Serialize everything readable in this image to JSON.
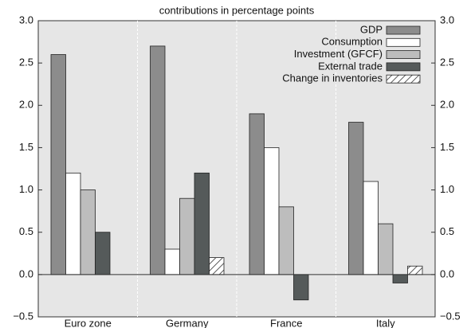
{
  "chart_data": {
    "type": "bar",
    "title": "contributions in percentage points",
    "categories": [
      "Euro zone",
      "Germany",
      "France",
      "Italy"
    ],
    "series": [
      {
        "name": "GDP",
        "color": "#8c8c8c",
        "values": [
          2.6,
          2.7,
          1.9,
          1.8
        ]
      },
      {
        "name": "Consumption",
        "color": "#ffffff",
        "values": [
          1.2,
          0.3,
          1.5,
          1.1
        ]
      },
      {
        "name": "Investment (GFCF)",
        "color": "#bdbdbd",
        "values": [
          1.0,
          0.9,
          0.8,
          0.6
        ]
      },
      {
        "name": "External trade",
        "color": "#555a5a",
        "values": [
          0.5,
          1.2,
          -0.3,
          -0.1
        ]
      },
      {
        "name": "Change in inventories",
        "color": "#ffffff",
        "hatch": true,
        "values": [
          null,
          0.2,
          null,
          0.1
        ]
      }
    ],
    "ylim": [
      -0.5,
      3.0
    ],
    "yticks": [
      {
        "value": -0.5,
        "label": "−0.5"
      },
      {
        "value": 0,
        "label": "0.0"
      },
      {
        "value": 0.5,
        "label": "0.5"
      },
      {
        "value": 1,
        "label": "1.0"
      },
      {
        "value": 1.5,
        "label": "1.5"
      },
      {
        "value": 2,
        "label": "2.0"
      },
      {
        "value": 2.5,
        "label": "2.5"
      },
      {
        "value": 3,
        "label": "3.0"
      }
    ],
    "grid": false,
    "legend": "top-right"
  }
}
